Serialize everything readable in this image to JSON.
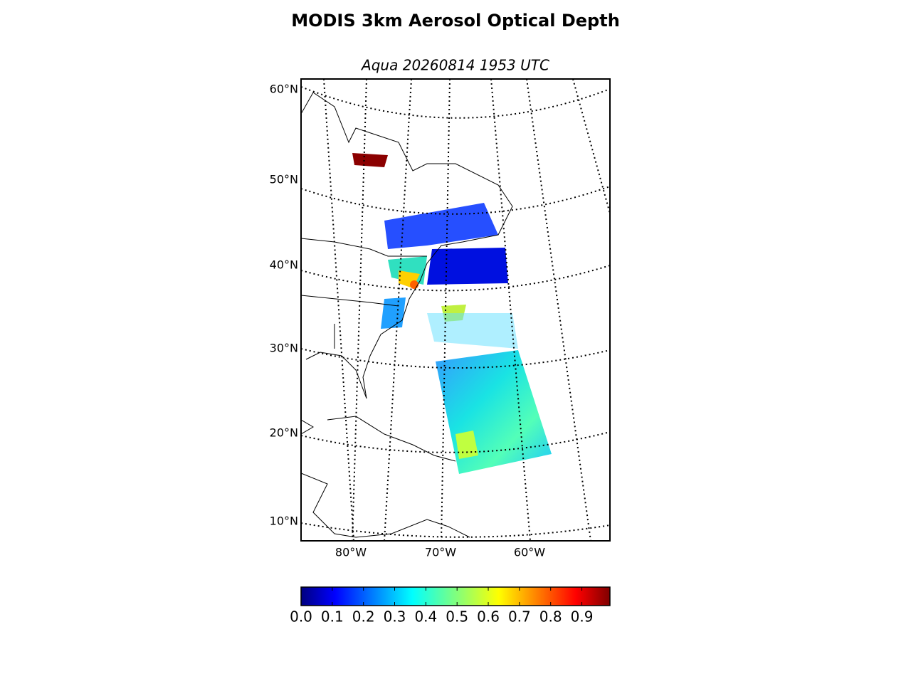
{
  "chart_data": {
    "type": "map",
    "title": "MODIS 3km Aerosol Optical Depth",
    "subtitle": "Aqua 20260814 1953 UTC",
    "lat_labels": [
      "60°N",
      "50°N",
      "40°N",
      "30°N",
      "20°N",
      "10°N"
    ],
    "lon_labels": [
      "80°W",
      "70°W",
      "60°W"
    ],
    "colormap": "jet",
    "clim": [
      0,
      0.99
    ],
    "cticks": [
      {
        "value": 0,
        "label": "0.0"
      },
      0.1,
      0.2,
      0.3,
      0.4,
      0.5,
      0.6,
      0.7,
      0.8,
      0.9
    ]
  }
}
